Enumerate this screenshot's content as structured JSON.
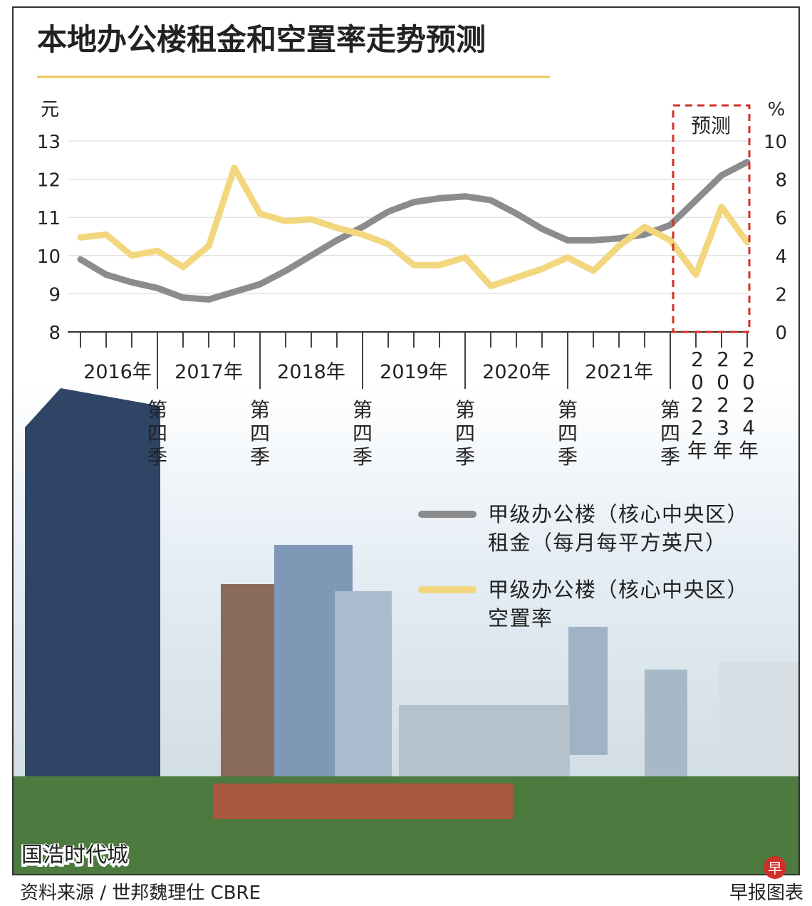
{
  "chart_data": {
    "type": "line",
    "title": "本地办公楼租金和空置率走势预测",
    "y_label": "元",
    "y2_label": "%",
    "forecast_label": "预测",
    "categories": [
      null,
      null,
      null,
      "第四季",
      null,
      null,
      null,
      "第四季",
      null,
      null,
      null,
      "第四季",
      null,
      null,
      null,
      "第四季",
      null,
      null,
      null,
      "第四季",
      null,
      null,
      null,
      "第四季",
      "2022年",
      "2023年",
      "2024年"
    ],
    "x_groups": [
      "2016年",
      "2017年",
      "2018年",
      "2019年",
      "2020年",
      "2021年"
    ],
    "ylim": [
      8,
      13
    ],
    "yticks": [
      8,
      9,
      10,
      11,
      12,
      13
    ],
    "y2lim": [
      0,
      10
    ],
    "y2ticks": [
      0,
      2,
      4,
      6,
      8,
      10
    ],
    "grid": true,
    "series": [
      {
        "name": "甲级办公楼（核心中央区）租金（每月每平方英尺）",
        "color": "#8c8c8c",
        "values": [
          9.9,
          9.5,
          9.3,
          9.15,
          8.9,
          8.85,
          9.05,
          9.25,
          9.6,
          10.0,
          10.4,
          10.75,
          11.15,
          11.4,
          11.5,
          11.55,
          11.45,
          11.1,
          10.7,
          10.4,
          10.4,
          10.45,
          10.55,
          10.8,
          11.45,
          12.1,
          12.45
        ]
      },
      {
        "name": "甲级办公楼（核心中央区）空置率",
        "color": "#f3d77f",
        "axis": "y2",
        "values": [
          4.95,
          5.1,
          4.0,
          4.25,
          3.4,
          4.5,
          8.6,
          6.2,
          5.8,
          5.9,
          5.45,
          5.1,
          4.6,
          3.5,
          3.5,
          3.9,
          2.4,
          2.85,
          3.3,
          3.9,
          3.2,
          4.5,
          5.5,
          4.8,
          3.0,
          6.55,
          4.7
        ]
      }
    ],
    "photo_caption": "国浩时代城",
    "source": "资料来源 / 世邦魏理仕 CBRE",
    "credit": "早报图表",
    "logo": "早"
  }
}
